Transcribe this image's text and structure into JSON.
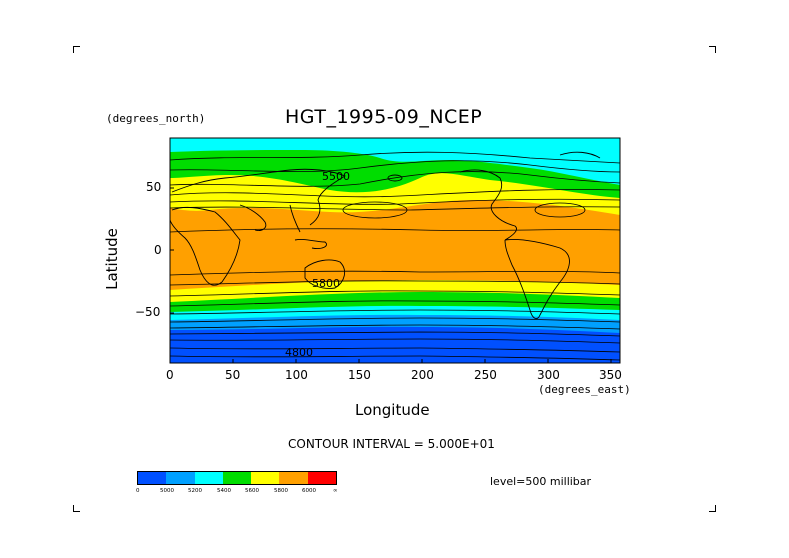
{
  "figure": {
    "title": "HGT_1995-09_NCEP",
    "y_unit": "(degrees_north)",
    "x_unit": "(degrees_east)",
    "x_axis_label": "Longitude",
    "y_axis_label": "Latitude",
    "x_ticks": [
      "0",
      "50",
      "100",
      "150",
      "200",
      "250",
      "300",
      "350"
    ],
    "y_ticks": [
      "50",
      "0",
      "−50"
    ],
    "contour_interval_text": "CONTOUR INTERVAL = 5.000E+01",
    "level_text": "level=500 millibar",
    "contour_labels": [
      "5500",
      "5800",
      "4800"
    ]
  },
  "colorbar": {
    "labels": [
      "0",
      "5000",
      "5200",
      "5400",
      "5600",
      "5800",
      "6000",
      "∞"
    ],
    "colors": [
      "#0050ff",
      "#00a0ff",
      "#00ffff",
      "#00dd00",
      "#ffff00",
      "#ffa000",
      "#ff0000"
    ]
  },
  "map_bands": {
    "colors": {
      "cyan": "#00ffff",
      "green": "#00dd00",
      "yellow": "#ffff00",
      "orange": "#ffa000",
      "lightblue": "#00a0ff",
      "blue": "#0050ff"
    }
  }
}
